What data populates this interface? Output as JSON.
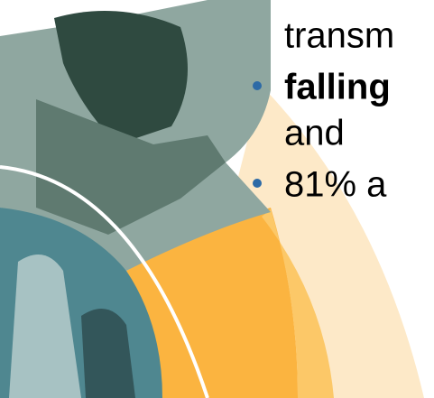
{
  "slide": {
    "lines": [
      "transm",
      "falling",
      "and",
      "81% a"
    ]
  }
}
